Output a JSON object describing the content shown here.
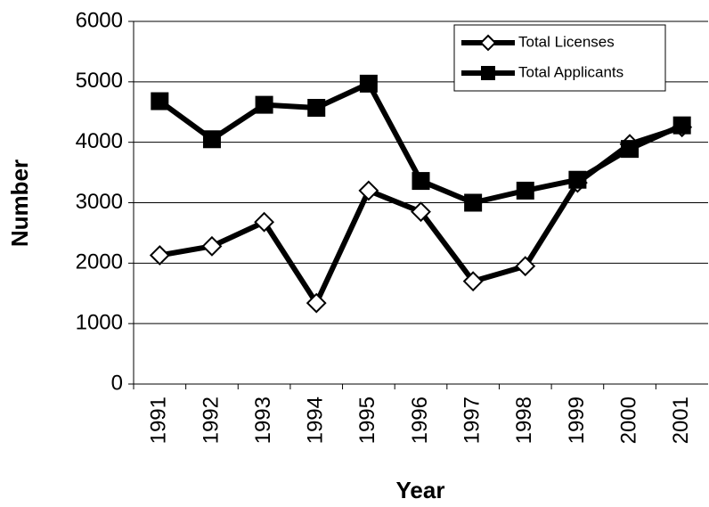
{
  "chart_data": {
    "type": "line",
    "x_label": "Year",
    "y_label": "Number",
    "categories": [
      "1991",
      "1992",
      "1993",
      "1994",
      "1995",
      "1996",
      "1997",
      "1998",
      "1999",
      "2000",
      "2001"
    ],
    "series": [
      {
        "name": "Total Licenses",
        "color": "#000000",
        "marker": "diamond",
        "values": [
          2130,
          2280,
          2680,
          1340,
          3200,
          2850,
          1700,
          1950,
          3330,
          3970,
          4250
        ]
      },
      {
        "name": "Total Applicants",
        "color": "#000000",
        "marker": "square",
        "values": [
          4680,
          4050,
          4620,
          4570,
          4970,
          3360,
          3000,
          3200,
          3380,
          3890,
          4280
        ]
      }
    ],
    "ylim": [
      0,
      6000
    ],
    "yticks": [
      0,
      1000,
      2000,
      3000,
      4000,
      5000,
      6000
    ],
    "grid": true,
    "legend": "upper right"
  }
}
